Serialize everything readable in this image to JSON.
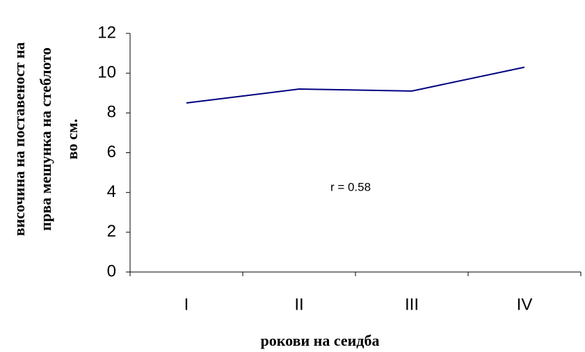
{
  "chart_data": {
    "type": "line",
    "y_label": [
      "височина на поставеност на",
      "прва мешунка на стеблото",
      "во см."
    ],
    "x_label": "рокови на сеидба",
    "annotation": "r = 0.58",
    "categories": [
      "I",
      "II",
      "III",
      "IV"
    ],
    "values": [
      8.5,
      9.2,
      9.1,
      10.3
    ],
    "color": "#000080",
    "ylim": [
      0,
      12
    ],
    "yticks": [
      0,
      2,
      4,
      6,
      8,
      10,
      12
    ],
    "grid": false
  }
}
